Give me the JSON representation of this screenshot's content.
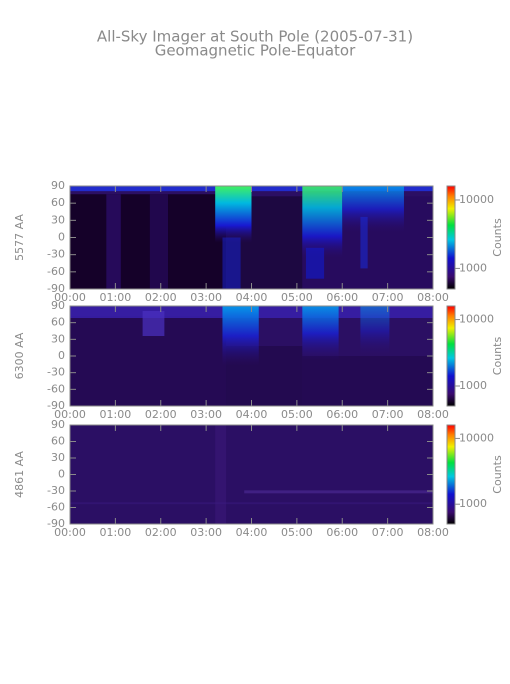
{
  "title": "All-Sky Imager at South Pole (2005-07-31)",
  "subtitle": "Geomagnetic Pole-Equator",
  "chart_data": [
    {
      "type": "heatmap",
      "y_label": "5577 AA",
      "xlim": [
        0,
        8
      ],
      "xticks": [
        {
          "value": 0,
          "label": "00:00"
        },
        {
          "value": 1,
          "label": "01:00"
        },
        {
          "value": 2,
          "label": "02:00"
        },
        {
          "value": 3,
          "label": "03:00"
        },
        {
          "value": 4,
          "label": "04:00"
        },
        {
          "value": 5,
          "label": "05:00"
        },
        {
          "value": 6,
          "label": "06:00"
        },
        {
          "value": 7,
          "label": "07:00"
        },
        {
          "value": 8,
          "label": "08:00"
        }
      ],
      "ylim": [
        -90,
        90
      ],
      "yticks": [
        -90,
        -60,
        -30,
        0,
        30,
        60,
        90
      ],
      "colorbar_label": "Counts",
      "colorbar_log": true,
      "clim": [
        500,
        16000
      ],
      "colorbar_ticks": [
        1000,
        10000
      ]
    },
    {
      "type": "heatmap",
      "y_label": "6300 AA",
      "xlim": [
        0,
        8
      ],
      "xticks": [
        {
          "value": 0,
          "label": "00:00"
        },
        {
          "value": 1,
          "label": "01:00"
        },
        {
          "value": 2,
          "label": "02:00"
        },
        {
          "value": 3,
          "label": "03:00"
        },
        {
          "value": 4,
          "label": "04:00"
        },
        {
          "value": 5,
          "label": "05:00"
        },
        {
          "value": 6,
          "label": "06:00"
        },
        {
          "value": 7,
          "label": "07:00"
        },
        {
          "value": 8,
          "label": "08:00"
        }
      ],
      "ylim": [
        -90,
        90
      ],
      "yticks": [
        -90,
        -60,
        -30,
        0,
        30,
        60,
        90
      ],
      "colorbar_label": "Counts",
      "colorbar_log": true,
      "clim": [
        500,
        16000
      ],
      "colorbar_ticks": [
        1000,
        10000
      ]
    },
    {
      "type": "heatmap",
      "y_label": "4861 AA",
      "xlim": [
        0,
        8
      ],
      "xticks": [
        {
          "value": 0,
          "label": "00:00"
        },
        {
          "value": 1,
          "label": "01:00"
        },
        {
          "value": 2,
          "label": "02:00"
        },
        {
          "value": 3,
          "label": "03:00"
        },
        {
          "value": 4,
          "label": "04:00"
        },
        {
          "value": 5,
          "label": "05:00"
        },
        {
          "value": 6,
          "label": "06:00"
        },
        {
          "value": 7,
          "label": "07:00"
        },
        {
          "value": 8,
          "label": "08:00"
        }
      ],
      "ylim": [
        -90,
        90
      ],
      "yticks": [
        -90,
        -60,
        -30,
        0,
        30,
        60,
        90
      ],
      "colorbar_label": "Counts",
      "colorbar_log": true,
      "clim": [
        500,
        16000
      ],
      "colorbar_ticks": [
        1000,
        10000
      ]
    }
  ]
}
